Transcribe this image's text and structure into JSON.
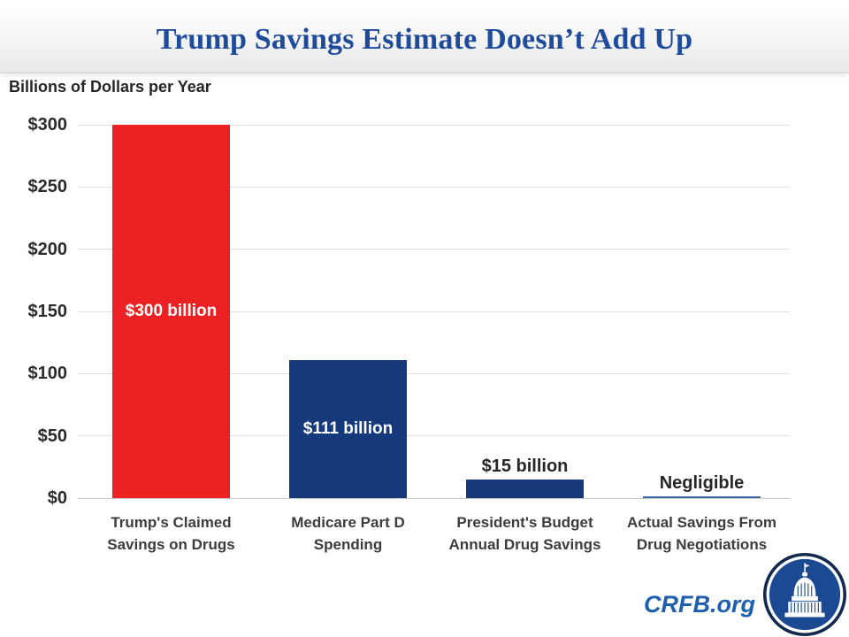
{
  "header": {
    "title": "Trump Savings Estimate Doesn’t Add Up"
  },
  "chart_data": {
    "type": "bar",
    "title": "Trump Savings Estimate Doesn’t Add Up",
    "ylabel": "Billions of Dollars per Year",
    "xlabel": "",
    "ylim": [
      0,
      300
    ],
    "grid": true,
    "legend_position": "none",
    "yticks": [
      0,
      50,
      100,
      150,
      200,
      250,
      300
    ],
    "ytick_labels": [
      "$0",
      "$50",
      "$100",
      "$150",
      "$200",
      "$250",
      "$300"
    ],
    "categories": [
      "Trump's Claimed\nSavings on Drugs",
      "Medicare Part D\nSpending",
      "President's Budget\nAnnual Drug Savings",
      "Actual Savings From\nDrug Negotiations"
    ],
    "values": [
      300,
      111,
      15,
      0
    ],
    "bar_labels": [
      "$300 billion",
      "$111 billion",
      "$15 billion",
      "Negligible"
    ],
    "bar_label_placement": [
      "inside",
      "inside",
      "above",
      "above"
    ],
    "bar_colors": [
      "#ec2123",
      "#16397b",
      "#16397b",
      "#3c6ba8"
    ]
  },
  "footer": {
    "brand": "CRFB.org",
    "logo": "capitol-icon"
  },
  "colors": {
    "title_blue": "#1f4b9b",
    "bar_red": "#ec2123",
    "bar_blue": "#16397b",
    "negligible_line": "#3c6ba8",
    "brand_blue": "#1e5fae",
    "gridline": "#dfdfdf",
    "axis_line": "#c8c8c8",
    "text_dark": "#2b2b2b"
  }
}
